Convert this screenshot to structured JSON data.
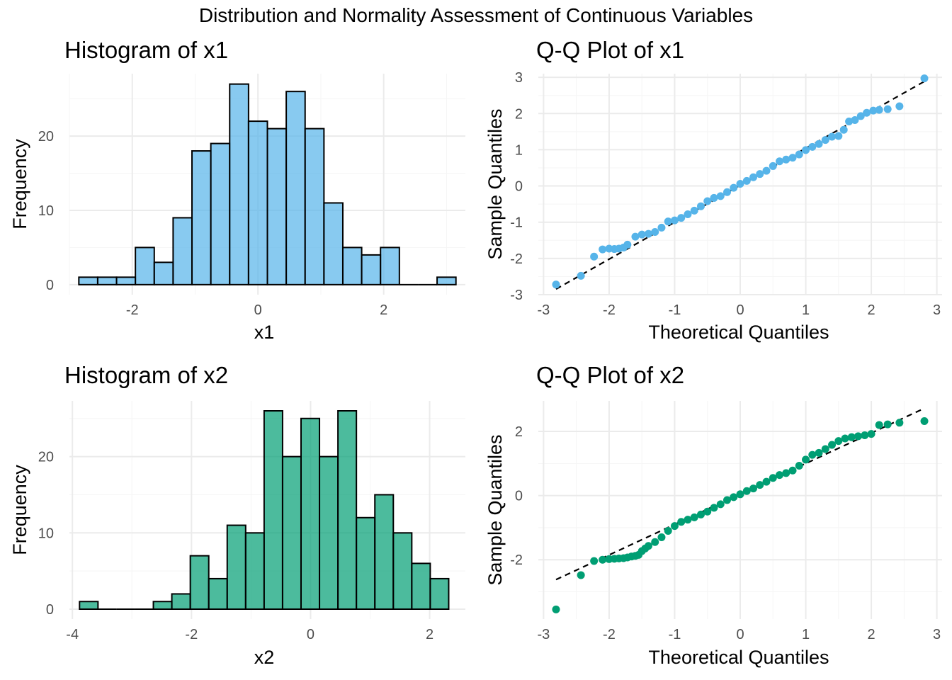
{
  "figure_title": "Distribution and Normality Assessment of Continuous Variables",
  "colors": {
    "x1": "#56B4E9",
    "x2": "#009E73",
    "grid_major": "#EBEBEB",
    "grid_minor": "#F5F5F5",
    "reference_line": "#000000"
  },
  "chart_data": [
    {
      "type": "bar",
      "id": "hist-x1",
      "title": "Histogram of x1",
      "xlabel": "x1",
      "ylabel": "Frequency",
      "xlim": [
        -3.0,
        3.3
      ],
      "ylim": [
        -1.35,
        28.4
      ],
      "xticks": [
        -2,
        0,
        2
      ],
      "yticks": [
        0,
        10,
        20
      ],
      "xminor": [
        -3,
        -1,
        1,
        3
      ],
      "yminor": [
        5,
        15,
        25
      ],
      "bin_width": 0.3,
      "bins": [
        {
          "x0": -2.85,
          "x1": -2.55,
          "count": 1
        },
        {
          "x0": -2.55,
          "x1": -2.25,
          "count": 1
        },
        {
          "x0": -2.25,
          "x1": -1.95,
          "count": 1
        },
        {
          "x0": -1.95,
          "x1": -1.65,
          "count": 5
        },
        {
          "x0": -1.65,
          "x1": -1.35,
          "count": 3
        },
        {
          "x0": -1.35,
          "x1": -1.05,
          "count": 9
        },
        {
          "x0": -1.05,
          "x1": -0.75,
          "count": 18
        },
        {
          "x0": -0.75,
          "x1": -0.45,
          "count": 19
        },
        {
          "x0": -0.45,
          "x1": -0.15,
          "count": 27
        },
        {
          "x0": -0.15,
          "x1": 0.15,
          "count": 22
        },
        {
          "x0": 0.15,
          "x1": 0.45,
          "count": 21
        },
        {
          "x0": 0.45,
          "x1": 0.75,
          "count": 26
        },
        {
          "x0": 0.75,
          "x1": 1.05,
          "count": 21
        },
        {
          "x0": 1.05,
          "x1": 1.35,
          "count": 11
        },
        {
          "x0": 1.35,
          "x1": 1.65,
          "count": 5
        },
        {
          "x0": 1.65,
          "x1": 1.95,
          "count": 4
        },
        {
          "x0": 1.95,
          "x1": 2.25,
          "count": 5
        },
        {
          "x0": 2.25,
          "x1": 2.55,
          "count": 0
        },
        {
          "x0": 2.55,
          "x1": 2.85,
          "count": 0
        },
        {
          "x0": 2.85,
          "x1": 3.15,
          "count": 1
        }
      ],
      "color": "#56B4E9"
    },
    {
      "type": "scatter",
      "id": "qq-x1",
      "title": "Q-Q Plot of x1",
      "xlabel": "Theoretical Quantiles",
      "ylabel": "Sample Quantiles",
      "xlim": [
        -3.08,
        3.08
      ],
      "ylim": [
        -3.0,
        3.1
      ],
      "xticks": [
        -3,
        -2,
        -1,
        0,
        1,
        2,
        3
      ],
      "yticks": [
        -3,
        -2,
        -1,
        0,
        1,
        2,
        3
      ],
      "xminor": [
        -2.5,
        -1.5,
        -0.5,
        0.5,
        1.5,
        2.5
      ],
      "yminor": [
        -2.5,
        -1.5,
        -0.5,
        0.5,
        1.5,
        2.5
      ],
      "n": 200,
      "sample_points": [
        [
          -2.81,
          -2.72
        ],
        [
          -2.43,
          -2.48
        ],
        [
          -2.23,
          -1.95
        ],
        [
          -2.1,
          -1.75
        ],
        [
          -2.0,
          -1.73
        ],
        [
          -1.92,
          -1.74
        ],
        [
          -1.85,
          -1.73
        ],
        [
          -1.78,
          -1.7
        ],
        [
          -1.72,
          -1.62
        ],
        [
          -1.6,
          -1.4
        ],
        [
          -1.5,
          -1.34
        ],
        [
          -1.4,
          -1.32
        ],
        [
          -1.3,
          -1.27
        ],
        [
          -1.2,
          -1.15
        ],
        [
          -1.1,
          -0.98
        ],
        [
          -1.0,
          -0.95
        ],
        [
          -0.9,
          -0.88
        ],
        [
          -0.8,
          -0.78
        ],
        [
          -0.7,
          -0.68
        ],
        [
          -0.6,
          -0.56
        ],
        [
          -0.5,
          -0.42
        ],
        [
          -0.4,
          -0.33
        ],
        [
          -0.3,
          -0.28
        ],
        [
          -0.2,
          -0.17
        ],
        [
          -0.1,
          -0.05
        ],
        [
          0.0,
          0.06
        ],
        [
          0.1,
          0.14
        ],
        [
          0.2,
          0.24
        ],
        [
          0.3,
          0.33
        ],
        [
          0.4,
          0.42
        ],
        [
          0.5,
          0.55
        ],
        [
          0.6,
          0.68
        ],
        [
          0.7,
          0.73
        ],
        [
          0.8,
          0.78
        ],
        [
          0.9,
          0.87
        ],
        [
          1.0,
          0.99
        ],
        [
          1.1,
          1.08
        ],
        [
          1.2,
          1.16
        ],
        [
          1.3,
          1.27
        ],
        [
          1.4,
          1.36
        ],
        [
          1.5,
          1.38
        ],
        [
          1.58,
          1.55
        ],
        [
          1.66,
          1.78
        ],
        [
          1.75,
          1.82
        ],
        [
          1.84,
          1.93
        ],
        [
          1.93,
          2.02
        ],
        [
          2.03,
          2.08
        ],
        [
          2.12,
          2.1
        ],
        [
          2.25,
          2.12
        ],
        [
          2.43,
          2.2
        ],
        [
          2.81,
          2.97
        ]
      ],
      "reference_line": {
        "intercept": 0.02,
        "slope": 1.02
      },
      "color": "#56B4E9"
    },
    {
      "type": "bar",
      "id": "hist-x2",
      "title": "Histogram of x2",
      "xlabel": "x2",
      "ylabel": "Frequency",
      "xlim": [
        -4.05,
        2.6
      ],
      "ylim": [
        -1.3,
        27.3
      ],
      "xticks": [
        -4,
        -2,
        0,
        2
      ],
      "yticks": [
        0,
        10,
        20
      ],
      "xminor": [
        -3,
        -1,
        1
      ],
      "yminor": [
        5,
        15,
        25
      ],
      "bin_width": 0.31,
      "bins": [
        {
          "x0": -3.88,
          "x1": -3.57,
          "count": 1
        },
        {
          "x0": -3.57,
          "x1": -3.26,
          "count": 0
        },
        {
          "x0": -3.26,
          "x1": -2.95,
          "count": 0
        },
        {
          "x0": -2.95,
          "x1": -2.64,
          "count": 0
        },
        {
          "x0": -2.64,
          "x1": -2.33,
          "count": 1
        },
        {
          "x0": -2.33,
          "x1": -2.02,
          "count": 2
        },
        {
          "x0": -2.02,
          "x1": -1.71,
          "count": 7
        },
        {
          "x0": -1.71,
          "x1": -1.4,
          "count": 4
        },
        {
          "x0": -1.4,
          "x1": -1.09,
          "count": 11
        },
        {
          "x0": -1.09,
          "x1": -0.78,
          "count": 10
        },
        {
          "x0": -0.78,
          "x1": -0.47,
          "count": 26
        },
        {
          "x0": -0.47,
          "x1": -0.16,
          "count": 20
        },
        {
          "x0": -0.16,
          "x1": 0.15,
          "count": 25
        },
        {
          "x0": 0.15,
          "x1": 0.46,
          "count": 20
        },
        {
          "x0": 0.46,
          "x1": 0.77,
          "count": 26
        },
        {
          "x0": 0.77,
          "x1": 1.08,
          "count": 12
        },
        {
          "x0": 1.08,
          "x1": 1.39,
          "count": 15
        },
        {
          "x0": 1.39,
          "x1": 1.7,
          "count": 10
        },
        {
          "x0": 1.7,
          "x1": 2.01,
          "count": 6
        },
        {
          "x0": 2.01,
          "x1": 2.32,
          "count": 4
        }
      ],
      "color": "#009E73"
    },
    {
      "type": "scatter",
      "id": "qq-x2",
      "title": "Q-Q Plot of x2",
      "xlabel": "Theoretical Quantiles",
      "ylabel": "Sample Quantiles",
      "xlim": [
        -3.08,
        3.08
      ],
      "ylim": [
        -3.85,
        2.95
      ],
      "xticks": [
        -3,
        -2,
        -1,
        0,
        1,
        2,
        3
      ],
      "yticks": [
        -2,
        0,
        2
      ],
      "xminor": [
        -2.5,
        -1.5,
        -0.5,
        0.5,
        1.5,
        2.5
      ],
      "yminor": [
        -3,
        -1,
        1
      ],
      "n": 200,
      "sample_points": [
        [
          -2.81,
          -3.55
        ],
        [
          -2.43,
          -2.48
        ],
        [
          -2.23,
          -2.04
        ],
        [
          -2.1,
          -2.0
        ],
        [
          -2.0,
          -1.98
        ],
        [
          -1.92,
          -1.97
        ],
        [
          -1.85,
          -1.96
        ],
        [
          -1.78,
          -1.95
        ],
        [
          -1.72,
          -1.93
        ],
        [
          -1.66,
          -1.9
        ],
        [
          -1.6,
          -1.88
        ],
        [
          -1.55,
          -1.85
        ],
        [
          -1.5,
          -1.73
        ],
        [
          -1.45,
          -1.65
        ],
        [
          -1.4,
          -1.57
        ],
        [
          -1.3,
          -1.45
        ],
        [
          -1.2,
          -1.3
        ],
        [
          -1.1,
          -1.1
        ],
        [
          -1.0,
          -0.95
        ],
        [
          -0.9,
          -0.82
        ],
        [
          -0.8,
          -0.75
        ],
        [
          -0.7,
          -0.68
        ],
        [
          -0.6,
          -0.59
        ],
        [
          -0.5,
          -0.5
        ],
        [
          -0.4,
          -0.38
        ],
        [
          -0.3,
          -0.27
        ],
        [
          -0.2,
          -0.14
        ],
        [
          -0.1,
          -0.05
        ],
        [
          0.0,
          0.04
        ],
        [
          0.1,
          0.14
        ],
        [
          0.2,
          0.22
        ],
        [
          0.3,
          0.33
        ],
        [
          0.4,
          0.43
        ],
        [
          0.5,
          0.55
        ],
        [
          0.6,
          0.64
        ],
        [
          0.7,
          0.7
        ],
        [
          0.8,
          0.78
        ],
        [
          0.9,
          0.93
        ],
        [
          1.0,
          1.12
        ],
        [
          1.1,
          1.27
        ],
        [
          1.2,
          1.33
        ],
        [
          1.3,
          1.45
        ],
        [
          1.4,
          1.58
        ],
        [
          1.5,
          1.7
        ],
        [
          1.6,
          1.78
        ],
        [
          1.7,
          1.82
        ],
        [
          1.8,
          1.85
        ],
        [
          1.9,
          1.88
        ],
        [
          2.0,
          1.92
        ],
        [
          2.12,
          2.2
        ],
        [
          2.25,
          2.22
        ],
        [
          2.43,
          2.27
        ],
        [
          2.81,
          2.32
        ]
      ],
      "reference_line": {
        "intercept": 0.05,
        "slope": 0.95
      },
      "color": "#009E73"
    }
  ]
}
